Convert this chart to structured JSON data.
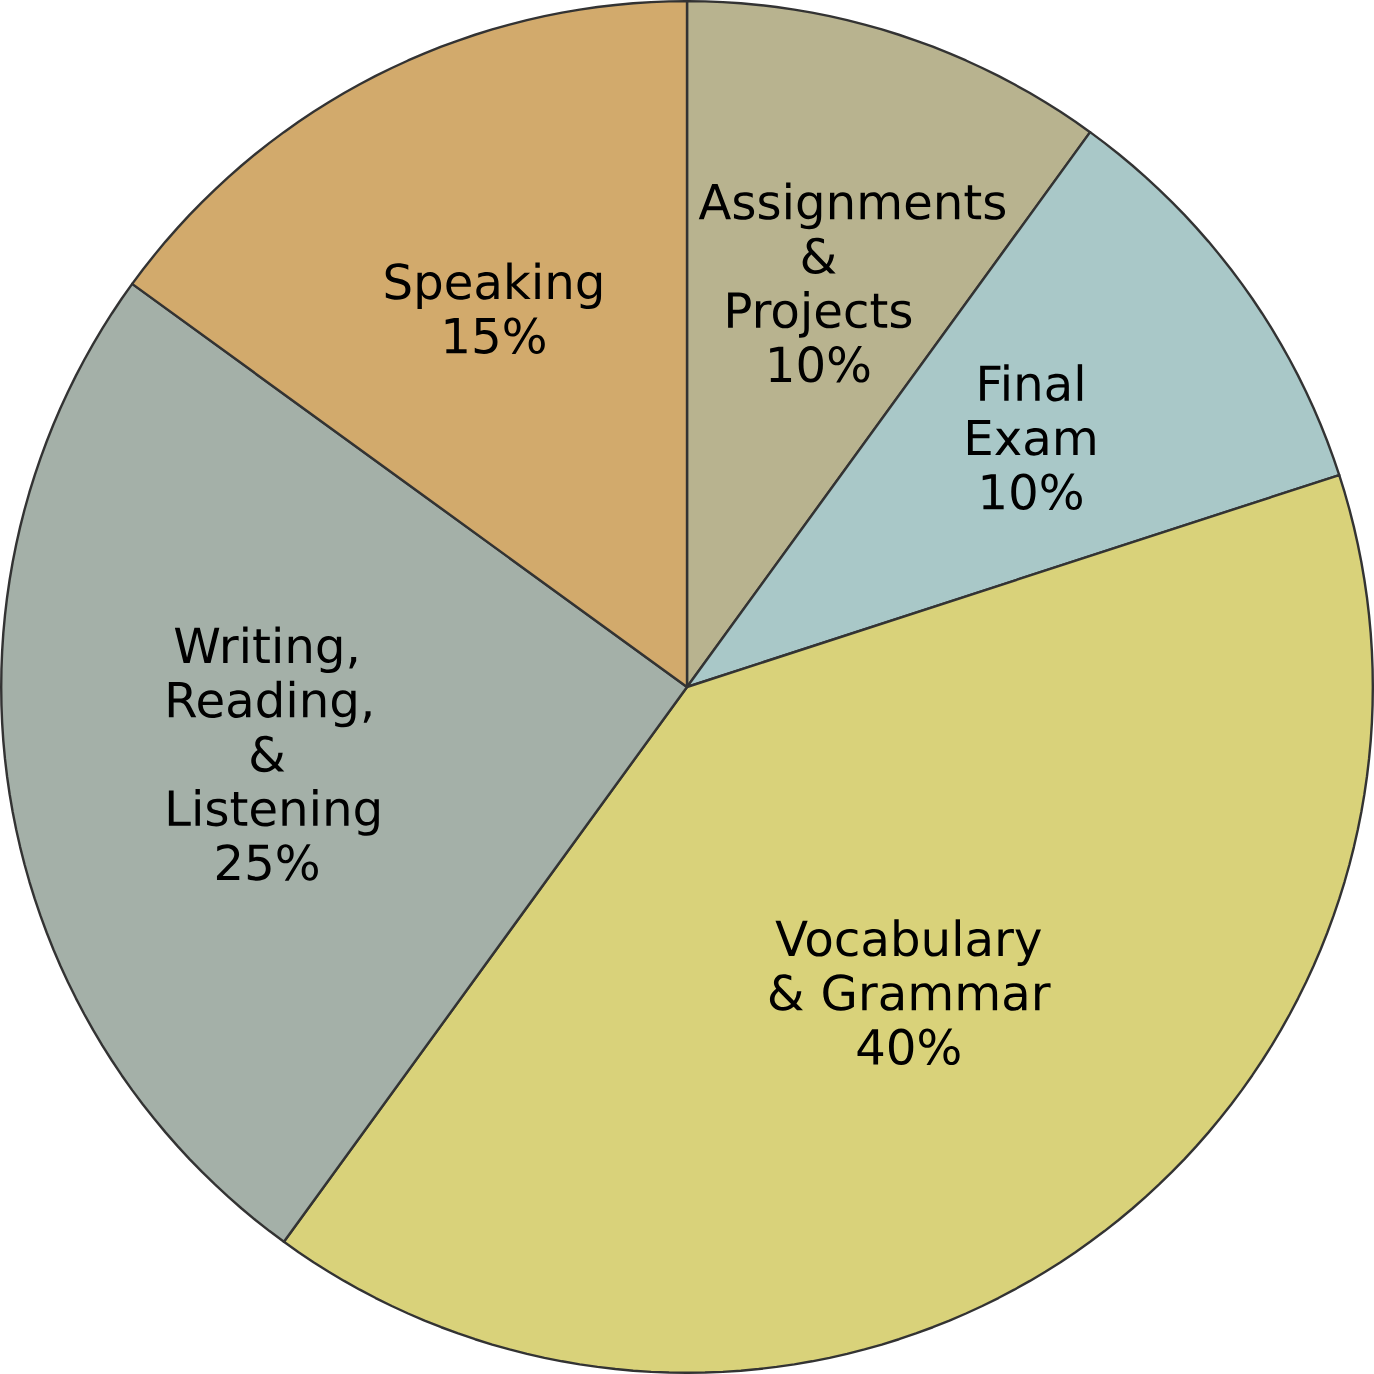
{
  "chart_data": {
    "type": "pie",
    "categories": [
      "Assignments & Projects",
      "Final Exam",
      "Vocabulary & Grammar",
      "Writing, Reading, & Listening",
      "Speaking"
    ],
    "values": [
      10,
      10,
      40,
      25,
      15
    ],
    "value_labels": [
      "10%",
      "10%",
      "40%",
      "25%",
      "15%"
    ],
    "colors": [
      "#b8b38f",
      "#a9c8c8",
      "#d9d27a",
      "#a4b0a8",
      "#d2aa6c"
    ]
  }
}
